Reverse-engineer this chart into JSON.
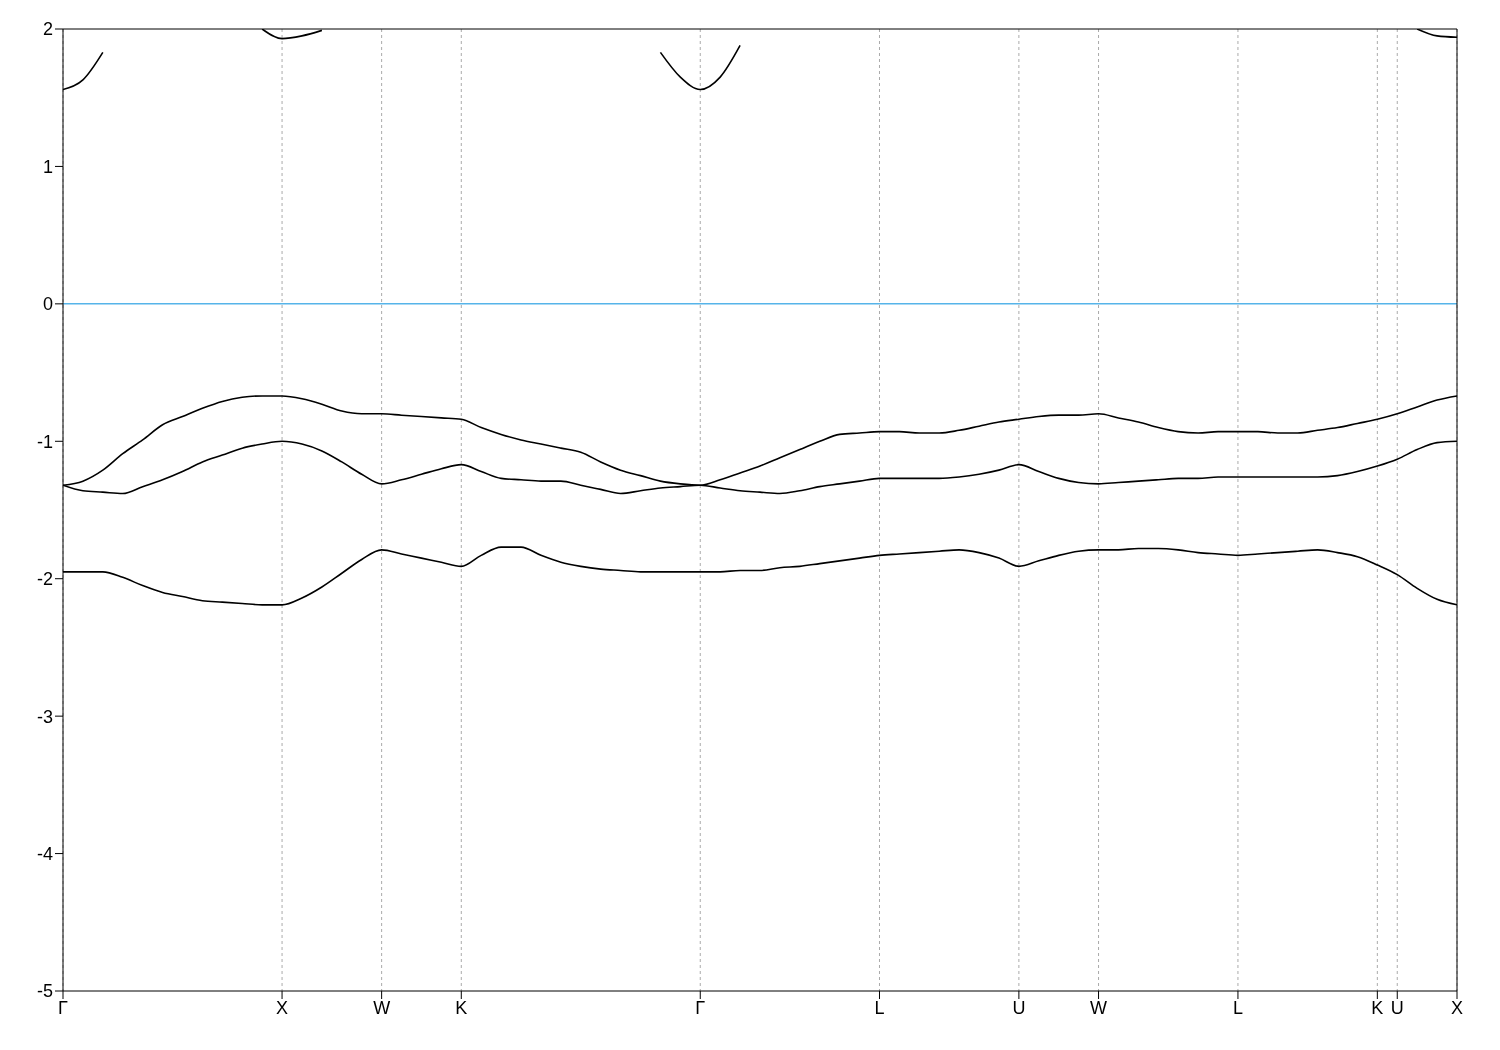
{
  "chart_data": {
    "type": "line",
    "categories": [
      "Γ",
      null,
      null,
      null,
      null,
      null,
      null,
      null,
      null,
      null,
      null,
      "X",
      null,
      null,
      null,
      null,
      "W",
      null,
      null,
      null,
      "K",
      null,
      null,
      null,
      null,
      null,
      null,
      null,
      null,
      null,
      null,
      null,
      "Γ",
      null,
      null,
      null,
      null,
      null,
      null,
      null,
      null,
      "L",
      null,
      null,
      null,
      null,
      null,
      null,
      "U",
      null,
      null,
      null,
      "W",
      null,
      null,
      null,
      null,
      null,
      null,
      "L",
      null,
      null,
      null,
      null,
      null,
      null,
      "K",
      "U",
      null,
      null,
      "X"
    ],
    "ylim": [
      -5,
      2
    ],
    "yticks": [
      -5,
      -4,
      -3,
      -2,
      -1,
      0,
      1,
      2
    ],
    "grid": "x",
    "ref_lines": [
      {
        "axis": "y",
        "value": 0,
        "color": "#56b4e9"
      }
    ],
    "series": [
      {
        "color": "#000000",
        "values": [
          -1.32,
          -1.29,
          -1.21,
          -1.09,
          -0.99,
          -0.88,
          -0.82,
          -0.76,
          -0.71,
          -0.68,
          -0.67,
          -0.67,
          -0.69,
          -0.73,
          -0.78,
          -0.8,
          -0.8,
          -0.81,
          -0.82,
          -0.83,
          -0.84,
          -0.9,
          -0.95,
          -0.99,
          -1.02,
          -1.05,
          -1.08,
          -1.15,
          -1.21,
          -1.25,
          -1.29,
          -1.31,
          -1.32,
          -1.28,
          -1.23,
          -1.18,
          -1.12,
          -1.06,
          -1.0,
          -0.95,
          -0.94,
          -0.93,
          -0.93,
          -0.94,
          -0.94,
          -0.92,
          -0.89,
          -0.86,
          -0.84,
          -0.82,
          -0.81,
          -0.81,
          -0.8,
          -0.83,
          -0.86,
          -0.9,
          -0.93,
          -0.94,
          -0.93,
          -0.93,
          -0.93,
          -0.94,
          -0.94,
          -0.92,
          -0.9,
          -0.87,
          -0.84,
          -0.8,
          -0.75,
          -0.7,
          -0.67
        ]
      },
      {
        "color": "#000000",
        "values": [
          -1.32,
          -1.36,
          -1.37,
          -1.38,
          -1.33,
          -1.28,
          -1.22,
          -1.15,
          -1.1,
          -1.05,
          -1.02,
          -1.0,
          -1.02,
          -1.07,
          -1.15,
          -1.24,
          -1.31,
          -1.28,
          -1.24,
          -1.2,
          -1.17,
          -1.22,
          -1.27,
          -1.28,
          -1.29,
          -1.29,
          -1.32,
          -1.35,
          -1.38,
          -1.36,
          -1.34,
          -1.33,
          -1.32,
          -1.34,
          -1.36,
          -1.37,
          -1.38,
          -1.36,
          -1.33,
          -1.31,
          -1.29,
          -1.27,
          -1.27,
          -1.27,
          -1.27,
          -1.26,
          -1.24,
          -1.21,
          -1.17,
          -1.22,
          -1.27,
          -1.3,
          -1.31,
          -1.3,
          -1.29,
          -1.28,
          -1.27,
          -1.27,
          -1.26,
          -1.26,
          -1.26,
          -1.26,
          -1.26,
          -1.26,
          -1.25,
          -1.22,
          -1.18,
          -1.13,
          -1.06,
          -1.01,
          -1.0
        ]
      },
      {
        "color": "#000000",
        "values": [
          -1.95,
          -1.95,
          -1.95,
          -1.99,
          -2.05,
          -2.1,
          -2.13,
          -2.16,
          -2.17,
          -2.18,
          -2.19,
          -2.19,
          -2.14,
          -2.06,
          -1.96,
          -1.86,
          -1.79,
          -1.82,
          -1.85,
          -1.88,
          -1.91,
          -1.83,
          -1.77,
          -1.77,
          -1.83,
          -1.88,
          -1.91,
          -1.93,
          -1.94,
          -1.95,
          -1.95,
          -1.95,
          -1.95,
          -1.95,
          -1.94,
          -1.94,
          -1.92,
          -1.91,
          -1.89,
          -1.87,
          -1.85,
          -1.83,
          -1.82,
          -1.81,
          -1.8,
          -1.79,
          -1.81,
          -1.85,
          -1.91,
          -1.87,
          -1.83,
          -1.8,
          -1.79,
          -1.79,
          -1.78,
          -1.78,
          -1.79,
          -1.81,
          -1.82,
          -1.83,
          -1.82,
          -1.81,
          -1.8,
          -1.79,
          -1.81,
          -1.84,
          -1.9,
          -1.97,
          -2.07,
          -2.15,
          -2.19
        ]
      },
      {
        "color": "#000000",
        "values": [
          1.56,
          1.63,
          1.83,
          null,
          null,
          null,
          null,
          null,
          null,
          null,
          2.0,
          1.93,
          1.95,
          1.99,
          null,
          null,
          null,
          null,
          null,
          null,
          null,
          null,
          null,
          null,
          null,
          null,
          null,
          null,
          null,
          null,
          1.83,
          1.65,
          1.56,
          1.65,
          1.88,
          null,
          null,
          null,
          null,
          null,
          null,
          null,
          null,
          null,
          null,
          null,
          null,
          null,
          null,
          null,
          null,
          null,
          null,
          null,
          null,
          null,
          null,
          null,
          null,
          null,
          null,
          null,
          null,
          null,
          null,
          null,
          null,
          null,
          2.0,
          1.95,
          1.94
        ]
      }
    ]
  }
}
